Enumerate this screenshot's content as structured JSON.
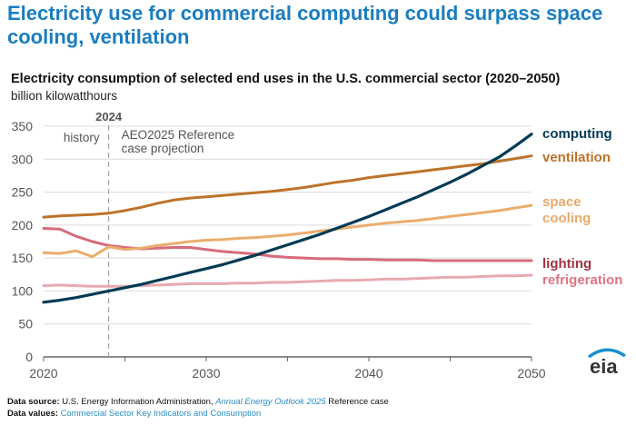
{
  "headline": "Electricity use for commercial computing could surpass space cooling, ventilation",
  "footer": {
    "source_label": "Data source:",
    "source_text": "U.S. Energy Information Administration,",
    "source_link": "Annual Energy Outlook 2025",
    "source_suffix": "Reference case",
    "values_label": "Data values:",
    "values_link": "Commercial Sector Key Indicators and Consumption"
  },
  "logo_text": "eia",
  "chart_data": {
    "type": "line",
    "title": "Electricity consumption of selected end uses in the U.S. commercial sector (2020–2050)",
    "ylabel": "billion kilowatthours",
    "xlim": [
      2020,
      2050
    ],
    "ylim": [
      0,
      350
    ],
    "xticks": [
      2020,
      2030,
      2040,
      2050
    ],
    "yticks": [
      0,
      50,
      100,
      150,
      200,
      250,
      300,
      350
    ],
    "grid": true,
    "legend": "direct labels at right",
    "annotations": {
      "divider_year": "2024",
      "history": "history",
      "projection_line1": "AEO2025 Reference",
      "projection_line2": "case projection"
    },
    "x": [
      2020,
      2021,
      2022,
      2023,
      2024,
      2025,
      2026,
      2027,
      2028,
      2029,
      2030,
      2031,
      2032,
      2033,
      2034,
      2035,
      2036,
      2037,
      2038,
      2039,
      2040,
      2041,
      2042,
      2043,
      2044,
      2045,
      2046,
      2047,
      2048,
      2049,
      2050
    ],
    "series": [
      {
        "name": "computing",
        "color": "#003a54",
        "label_color": "#003a54",
        "values": [
          83,
          86,
          90,
          95,
          100,
          105,
          110,
          116,
          122,
          128,
          134,
          140,
          147,
          154,
          162,
          170,
          178,
          186,
          195,
          204,
          213,
          223,
          233,
          243,
          254,
          265,
          277,
          290,
          303,
          320,
          338
        ]
      },
      {
        "name": "ventilation",
        "color": "#bd732a",
        "label_color": "#bd732a",
        "values": [
          212,
          214,
          215,
          216,
          218,
          222,
          227,
          233,
          238,
          241,
          243,
          245,
          247,
          249,
          251,
          254,
          257,
          261,
          265,
          268,
          272,
          275,
          278,
          281,
          284,
          287,
          290,
          293,
          297,
          301,
          305
        ]
      },
      {
        "name": "space cooling",
        "label_lines": [
          "space",
          "cooling"
        ],
        "color": "#ebad6f",
        "label_color": "#e8a96b",
        "values": [
          158,
          157,
          161,
          152,
          167,
          163,
          165,
          169,
          172,
          175,
          177,
          178,
          180,
          181,
          183,
          185,
          188,
          191,
          194,
          197,
          200,
          203,
          205,
          207,
          210,
          213,
          216,
          219,
          222,
          226,
          230
        ]
      },
      {
        "name": "lighting",
        "color": "#d66b7b",
        "label_color": "#a3303f",
        "values": [
          195,
          194,
          183,
          175,
          169,
          166,
          164,
          165,
          166,
          166,
          163,
          160,
          158,
          156,
          153,
          151,
          150,
          149,
          149,
          148,
          148,
          147,
          147,
          147,
          146,
          146,
          146,
          146,
          146,
          146,
          146
        ]
      },
      {
        "name": "refrigeration",
        "color": "#e8a9b0",
        "label_color": "#de7583",
        "values": [
          108,
          109,
          108,
          107,
          107,
          107,
          108,
          109,
          110,
          111,
          111,
          111,
          112,
          112,
          113,
          113,
          114,
          115,
          116,
          116,
          117,
          118,
          118,
          119,
          120,
          121,
          121,
          122,
          123,
          123,
          124
        ]
      }
    ]
  }
}
